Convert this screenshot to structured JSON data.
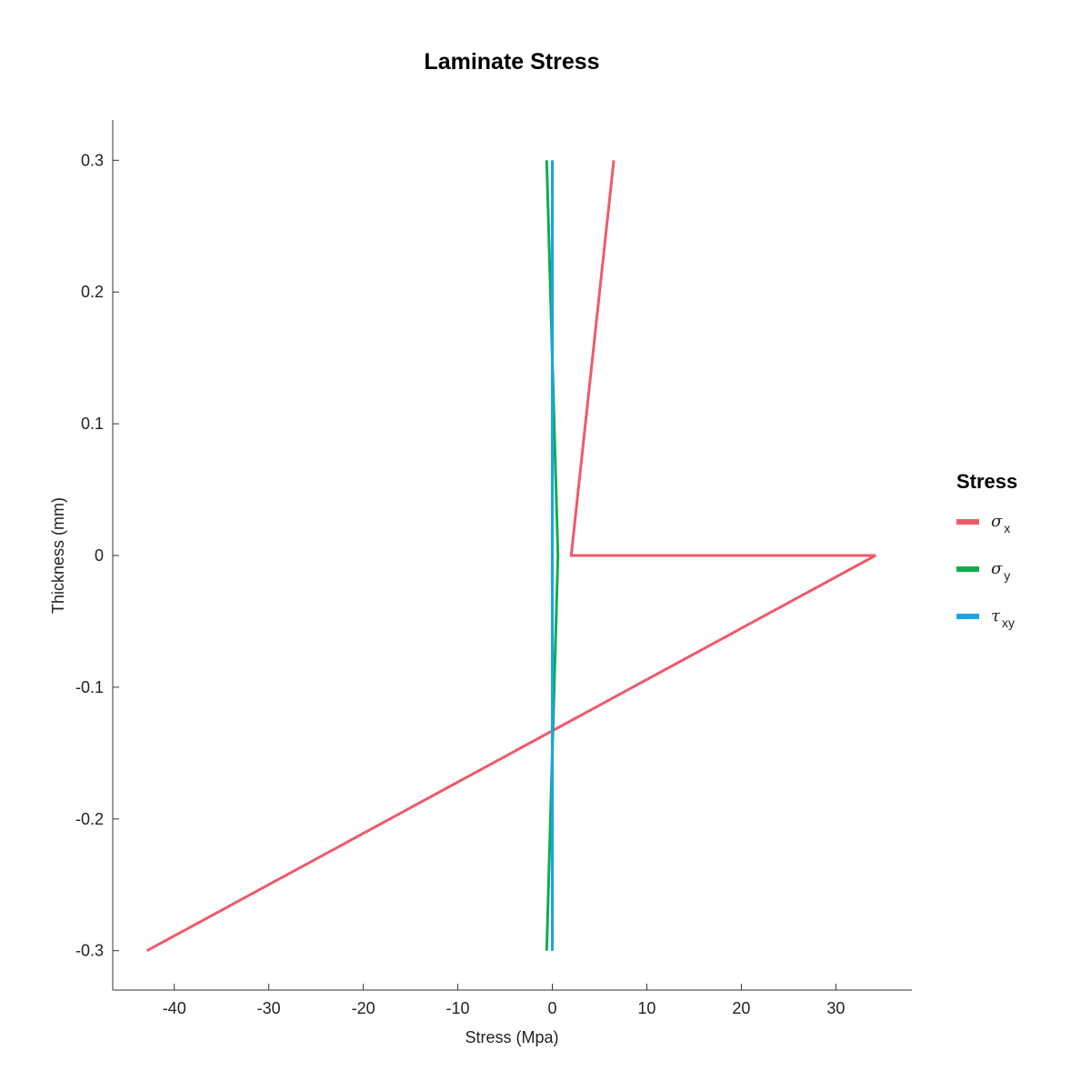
{
  "chart_data": {
    "type": "line",
    "title": "Laminate Stress",
    "xlabel": "Stress (Mpa)",
    "ylabel": "Thickness (mm)",
    "xlim": [
      -47,
      38
    ],
    "ylim": [
      -0.33,
      0.33
    ],
    "x_ticks": [
      -40,
      -30,
      -20,
      -10,
      0,
      10,
      20,
      30
    ],
    "y_ticks": [
      0.3,
      0.2,
      0.1,
      0,
      -0.1,
      -0.2,
      -0.3
    ],
    "y_tick_labels": [
      "0.3",
      "0.2",
      "0.1",
      "0",
      "-0.1",
      "-0.2",
      "-0.3"
    ],
    "grid": false,
    "legend": {
      "title": "Stress",
      "position": "right"
    },
    "series": [
      {
        "name": "σx",
        "symbol": "σ",
        "subscript": "x",
        "color": "#ef5a6a",
        "points": [
          [
            6.5,
            0.3
          ],
          [
            2.0,
            0.0
          ],
          [
            34.2,
            0.0
          ],
          [
            -42.9,
            -0.3
          ]
        ]
      },
      {
        "name": "σy",
        "symbol": "σ",
        "subscript": "y",
        "color": "#12ad4b",
        "points": [
          [
            -0.6,
            0.3
          ],
          [
            0.6,
            0.0
          ],
          [
            -0.6,
            -0.3
          ]
        ]
      },
      {
        "name": "τxy",
        "symbol": "τ",
        "subscript": "xy",
        "color": "#14a6e8",
        "points": [
          [
            0.0,
            0.3
          ],
          [
            0.0,
            0.0
          ],
          [
            0.0,
            -0.3
          ]
        ]
      }
    ]
  }
}
